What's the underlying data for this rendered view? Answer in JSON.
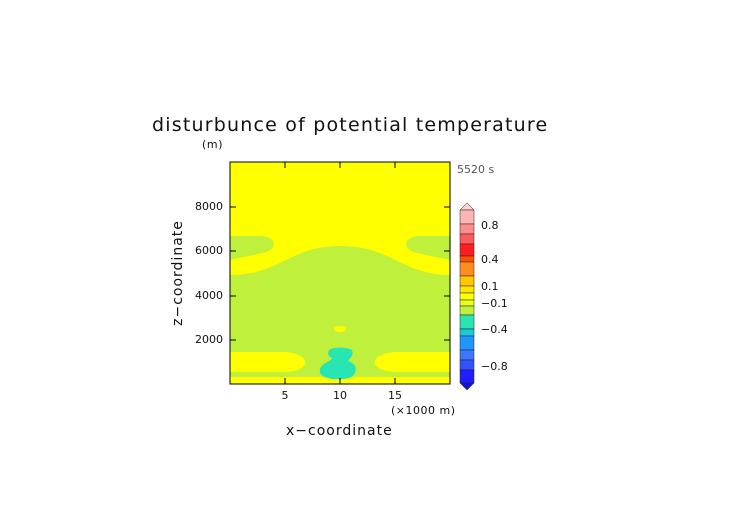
{
  "chart_data": {
    "type": "heatmap",
    "title": "disturbunce of potential temperature",
    "y_unit": "(m)",
    "time": "5520 s",
    "xlabel": "x−coordinate",
    "x_unit": "(×1000 m)",
    "ylabel": "z−coordinate",
    "xlim": [
      0,
      20
    ],
    "ylim": [
      0,
      10000
    ],
    "x_ticks": [
      "5",
      "10",
      "15"
    ],
    "y_ticks": [
      "2000",
      "4000",
      "6000",
      "8000"
    ],
    "colorbar": {
      "labels": [
        "0.8",
        "0.4",
        "0.1",
        "−0.1",
        "−0.4",
        "−0.8"
      ],
      "colors": {
        "yellow": "#ffff00",
        "light_green": "#bef03c",
        "cyan_green": "#28e6b4",
        "pink": "#ffb0b0"
      }
    }
  }
}
